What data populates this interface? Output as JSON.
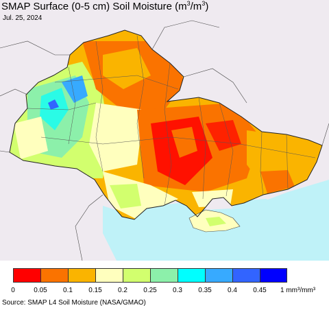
{
  "header": {
    "title_main": "SMAP Surface (0-5 cm) Soil Moisture (m",
    "title_exp1": "3",
    "title_mid": "/m",
    "title_exp2": "3",
    "title_end": ")",
    "date": "Jul. 25, 2024"
  },
  "map": {
    "sea_color": "#bff2f8",
    "land_outside_color": "#efeaf0",
    "region": "Ukraine and surroundings"
  },
  "legend": {
    "colors": [
      "#ff0000",
      "#fa7300",
      "#fab400",
      "#ffffbe",
      "#d2ff6e",
      "#8cf0aa",
      "#00ffff",
      "#37aaff",
      "#3264ff",
      "#0000ff"
    ],
    "ticks": [
      "0",
      "0.05",
      "0.1",
      "0.15",
      "0.2",
      "0.25",
      "0.3",
      "0.35",
      "0.4",
      "0.45"
    ],
    "unit": "1 mm³/mm³"
  },
  "footer": {
    "source": "Source: SMAP L4 Soil Moisture (NASA/GMAO)"
  }
}
